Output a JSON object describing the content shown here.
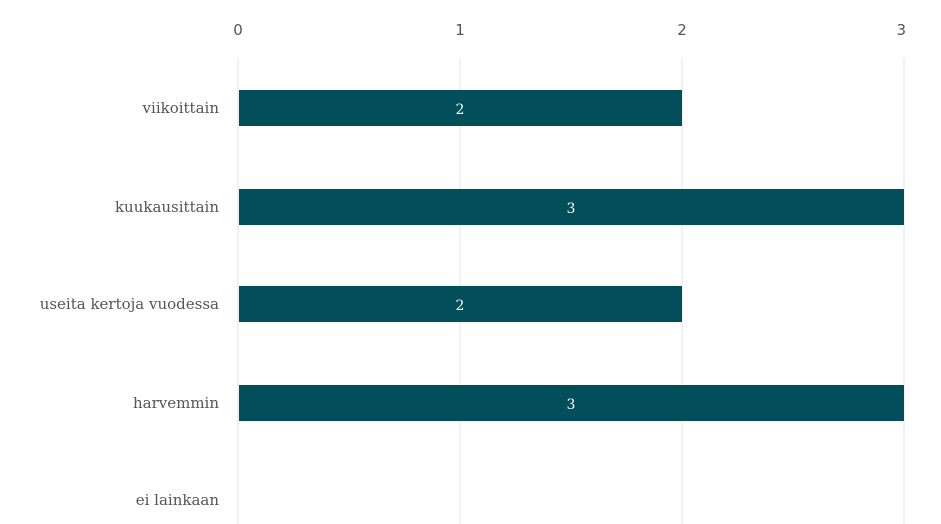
{
  "chart_data": {
    "type": "bar",
    "orientation": "horizontal",
    "categories": [
      "viikoittain",
      "kuukausittain",
      "useita kertoja vuodessa",
      "harvemmin",
      "ei lainkaan"
    ],
    "values": [
      2,
      3,
      2,
      3,
      null
    ],
    "data_labels": [
      "2",
      "3",
      "2",
      "3",
      ""
    ],
    "x_ticks": [
      "0",
      "1",
      "2",
      "3"
    ],
    "xlim": [
      0,
      3
    ],
    "x_axis_position": "top",
    "grid": true,
    "legend": "none",
    "colors": {
      "bar": "#024e5a",
      "grid": "#dce3ec",
      "text": "#555555",
      "label": "#ffffff"
    }
  }
}
